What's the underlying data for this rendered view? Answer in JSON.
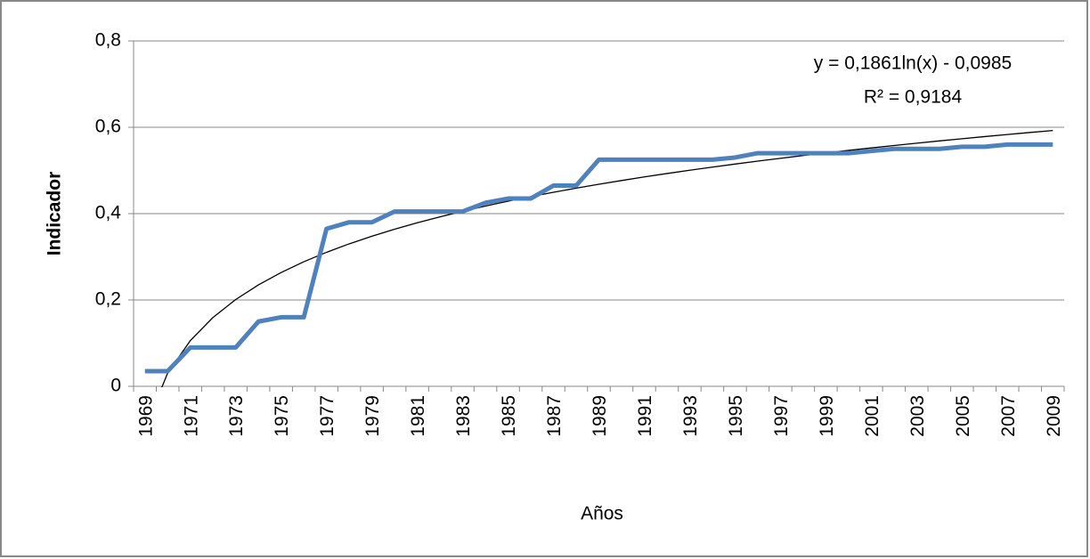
{
  "chart_data": {
    "type": "line",
    "xlabel": "Años",
    "ylabel": "Indicador",
    "categories": [
      "1969",
      null,
      "1971",
      null,
      "1973",
      null,
      "1975",
      null,
      "1977",
      null,
      "1979",
      null,
      "1981",
      null,
      "1983",
      null,
      "1985",
      null,
      "1987",
      null,
      "1989",
      null,
      "1991",
      null,
      "1993",
      null,
      "1995",
      null,
      "1997",
      null,
      "1999",
      null,
      "2001",
      null,
      "2003",
      null,
      "2005",
      null,
      "2007",
      null,
      "2009"
    ],
    "series": [
      {
        "color": "#4f81bd",
        "values": [
          0.035,
          0.035,
          0.09,
          0.09,
          0.09,
          0.15,
          0.16,
          0.16,
          0.365,
          0.38,
          0.38,
          0.405,
          0.405,
          0.405,
          0.405,
          0.425,
          0.435,
          0.435,
          0.465,
          0.465,
          0.525,
          0.525,
          0.525,
          0.525,
          0.525,
          0.525,
          0.53,
          0.54,
          0.54,
          0.54,
          0.54,
          0.54,
          0.545,
          0.55,
          0.55,
          0.55,
          0.555,
          0.555,
          0.56,
          0.56,
          0.56
        ]
      }
    ],
    "trendline": {
      "color": "#000000",
      "equation": "y = 0,1861ln(x) - 0,0985",
      "r_squared": "R² = 0,9184",
      "values": [
        -0.0985,
        0.0305,
        0.1059,
        0.1595,
        0.201,
        0.2349,
        0.2636,
        0.2885,
        0.3104,
        0.33,
        0.3477,
        0.3639,
        0.3788,
        0.3926,
        0.4055,
        0.4175,
        0.4288,
        0.4394,
        0.4495,
        0.459,
        0.4681,
        0.4767,
        0.485,
        0.4929,
        0.5005,
        0.5078,
        0.5148,
        0.5216,
        0.5281,
        0.5345,
        0.5406,
        0.5465,
        0.5522,
        0.5578,
        0.5631,
        0.5684,
        0.5735,
        0.5785,
        0.5833,
        0.588,
        0.5926
      ]
    },
    "ylim": [
      0,
      0.8
    ],
    "yticks": [
      0,
      {
        "value": 0.2,
        "label": "0,2"
      },
      {
        "value": 0.4,
        "label": "0,4"
      },
      {
        "value": 0.6,
        "label": "0,6"
      },
      {
        "value": 0.8,
        "label": "0,8"
      }
    ],
    "grid": true
  }
}
